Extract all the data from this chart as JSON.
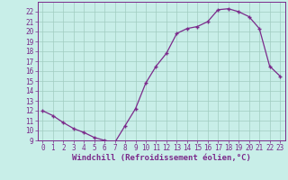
{
  "x": [
    0,
    1,
    2,
    3,
    4,
    5,
    6,
    7,
    8,
    9,
    10,
    11,
    12,
    13,
    14,
    15,
    16,
    17,
    18,
    19,
    20,
    21,
    22,
    23
  ],
  "y": [
    12,
    11.5,
    10.8,
    10.2,
    9.8,
    9.3,
    9.0,
    8.8,
    10.5,
    12.2,
    14.8,
    16.5,
    17.8,
    19.8,
    20.3,
    20.5,
    21.0,
    22.2,
    22.3,
    22.0,
    21.5,
    20.3,
    16.5,
    15.5
  ],
  "line_color": "#7b2a8b",
  "marker": "+",
  "bg_color": "#c8eee8",
  "grid_color": "#a0ccc0",
  "xlabel": "Windchill (Refroidissement éolien,°C)",
  "ylim": [
    9,
    23
  ],
  "xlim": [
    -0.5,
    23.5
  ],
  "yticks": [
    9,
    10,
    11,
    12,
    13,
    14,
    15,
    16,
    17,
    18,
    19,
    20,
    21,
    22
  ],
  "xticks": [
    0,
    1,
    2,
    3,
    4,
    5,
    6,
    7,
    8,
    9,
    10,
    11,
    12,
    13,
    14,
    15,
    16,
    17,
    18,
    19,
    20,
    21,
    22,
    23
  ],
  "label_color": "#7b2a8b",
  "tick_color": "#7b2a8b",
  "spine_color": "#7b2a8b",
  "font_family": "monospace",
  "tick_fontsize": 5.5,
  "xlabel_fontsize": 6.5
}
